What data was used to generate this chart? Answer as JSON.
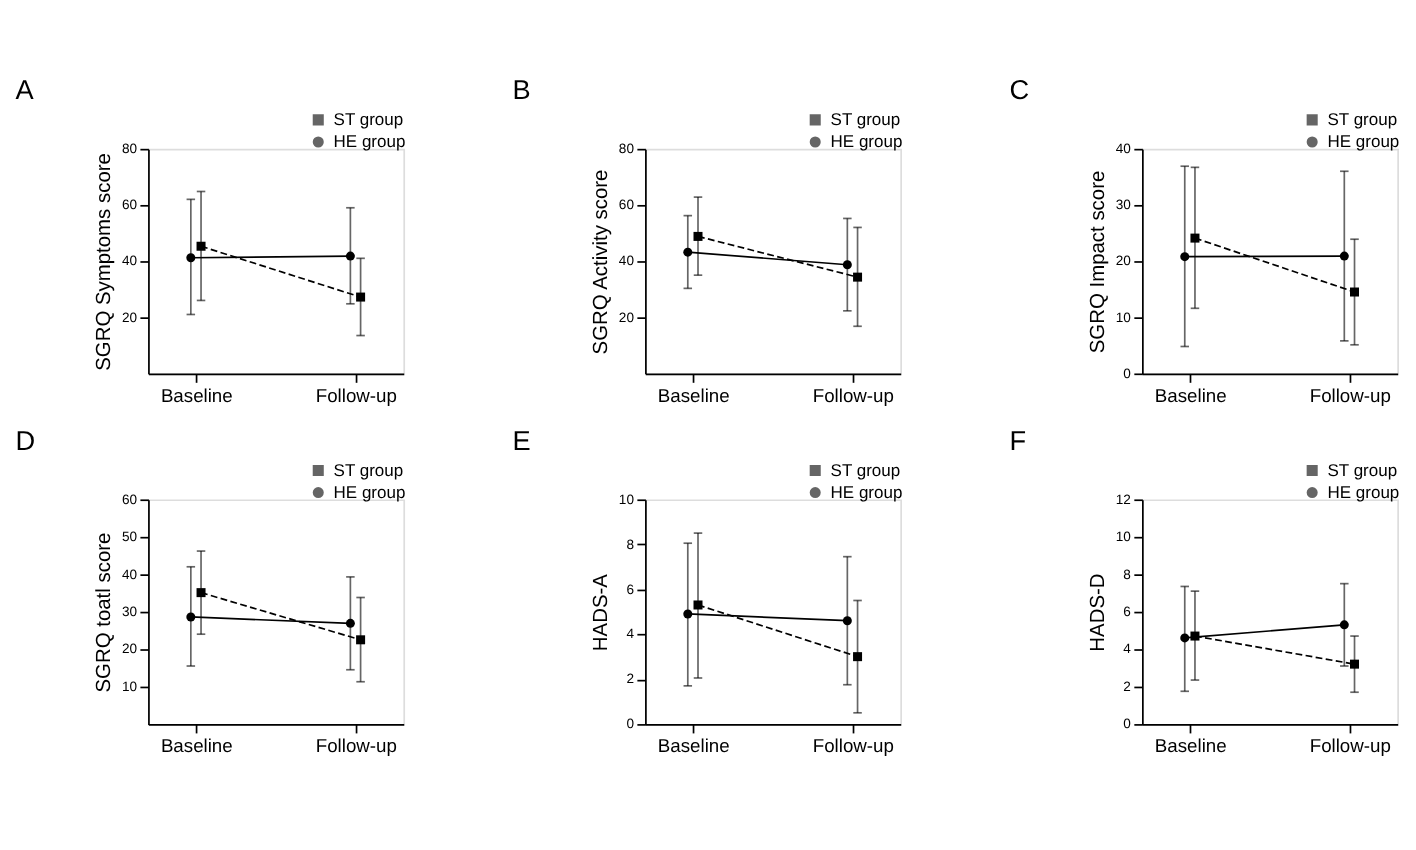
{
  "chart_data": [
    {
      "type": "line",
      "title": "A",
      "ylabel": "SGRQ Symptoms score",
      "categories": [
        "Baseline",
        "Follow-up"
      ],
      "ylim": [
        0,
        80
      ],
      "yticks": [
        20,
        40,
        60,
        80
      ],
      "grid": false,
      "legend": "top right",
      "series": [
        {
          "name": "ST group",
          "color": "#000000",
          "marker": "square",
          "line_style": "dashed",
          "values": [
            45.3,
            27.2
          ],
          "errors": [
            [
              26,
              64.8
            ],
            [
              13.5,
              41
            ]
          ]
        },
        {
          "name": "HE group",
          "color": "#000000",
          "marker": "circle",
          "line_style": "solid",
          "values": [
            41.2,
            41.8
          ],
          "errors": [
            [
              21,
              62
            ],
            [
              24.8,
              59
            ]
          ]
        }
      ]
    },
    {
      "type": "line",
      "title": "B",
      "ylabel": "SGRQ Activity score",
      "categories": [
        "Baseline",
        "Follow-up"
      ],
      "ylim": [
        0,
        80
      ],
      "yticks": [
        20,
        40,
        60,
        80
      ],
      "grid": false,
      "legend": "top right",
      "series": [
        {
          "name": "ST group",
          "color": "#000000",
          "marker": "square",
          "line_style": "dashed",
          "values": [
            48.8,
            34.3
          ],
          "errors": [
            [
              35,
              62.8
            ],
            [
              16.8,
              52
            ]
          ]
        },
        {
          "name": "HE group",
          "color": "#000000",
          "marker": "circle",
          "line_style": "solid",
          "values": [
            43.2,
            38.7
          ],
          "errors": [
            [
              30.3,
              56.2
            ],
            [
              22.3,
              55.2
            ]
          ]
        }
      ]
    },
    {
      "type": "line",
      "title": "C",
      "ylabel": "SGRQ Impact score",
      "categories": [
        "Baseline",
        "Follow-up"
      ],
      "ylim": [
        0,
        40
      ],
      "yticks": [
        0,
        10,
        20,
        30,
        40
      ],
      "grid": false,
      "legend": "top right",
      "series": [
        {
          "name": "ST group",
          "color": "#000000",
          "marker": "square",
          "line_style": "dashed",
          "values": [
            24.1,
            14.5
          ],
          "errors": [
            [
              11.6,
              36.7
            ],
            [
              5.1,
              23.9
            ]
          ]
        },
        {
          "name": "HE group",
          "color": "#000000",
          "marker": "circle",
          "line_style": "solid",
          "values": [
            20.8,
            20.9
          ],
          "errors": [
            [
              4.8,
              36.9
            ],
            [
              5.8,
              36
            ]
          ]
        }
      ]
    },
    {
      "type": "line",
      "title": "D",
      "ylabel": "SGRQ toatl score",
      "categories": [
        "Baseline",
        "Follow-up"
      ],
      "ylim": [
        0,
        60
      ],
      "yticks": [
        10,
        20,
        30,
        40,
        50,
        60
      ],
      "grid": false,
      "legend": "top right",
      "series": [
        {
          "name": "ST group",
          "color": "#000000",
          "marker": "square",
          "line_style": "dashed",
          "values": [
            35.1,
            22.5
          ],
          "errors": [
            [
              24,
              46.2
            ],
            [
              11.3,
              33.8
            ]
          ]
        },
        {
          "name": "HE group",
          "color": "#000000",
          "marker": "circle",
          "line_style": "solid",
          "values": [
            28.6,
            26.9
          ],
          "errors": [
            [
              15.5,
              42
            ],
            [
              14.5,
              39.3
            ]
          ]
        }
      ]
    },
    {
      "type": "line",
      "title": "E",
      "ylabel": "HADS-A",
      "categories": [
        "Baseline",
        "Follow-up"
      ],
      "ylim": [
        0,
        10
      ],
      "yticks": [
        0,
        2,
        4,
        6,
        8,
        10
      ],
      "grid": false,
      "legend": "top right",
      "series": [
        {
          "name": "ST group",
          "color": "#000000",
          "marker": "square",
          "line_style": "dashed",
          "values": [
            5.3,
            3.0
          ],
          "errors": [
            [
              2.05,
              8.5
            ],
            [
              0.5,
              5.5
            ]
          ]
        },
        {
          "name": "HE group",
          "color": "#000000",
          "marker": "circle",
          "line_style": "solid",
          "values": [
            4.9,
            4.6
          ],
          "errors": [
            [
              1.7,
              8.05
            ],
            [
              1.75,
              7.45
            ]
          ]
        }
      ]
    },
    {
      "type": "line",
      "title": "F",
      "ylabel": "HADS-D",
      "categories": [
        "Baseline",
        "Follow-up"
      ],
      "ylim": [
        0,
        12
      ],
      "yticks": [
        0,
        2,
        4,
        6,
        8,
        10,
        12
      ],
      "grid": false,
      "legend": "top right",
      "series": [
        {
          "name": "ST group",
          "color": "#000000",
          "marker": "square",
          "line_style": "dashed",
          "values": [
            4.7,
            3.2
          ],
          "errors": [
            [
              2.35,
              7.1
            ],
            [
              1.7,
              4.7
            ]
          ]
        },
        {
          "name": "HE group",
          "color": "#000000",
          "marker": "circle",
          "line_style": "solid",
          "values": [
            4.6,
            5.3
          ],
          "errors": [
            [
              1.75,
              7.35
            ],
            [
              3.1,
              7.5
            ]
          ]
        }
      ]
    }
  ]
}
